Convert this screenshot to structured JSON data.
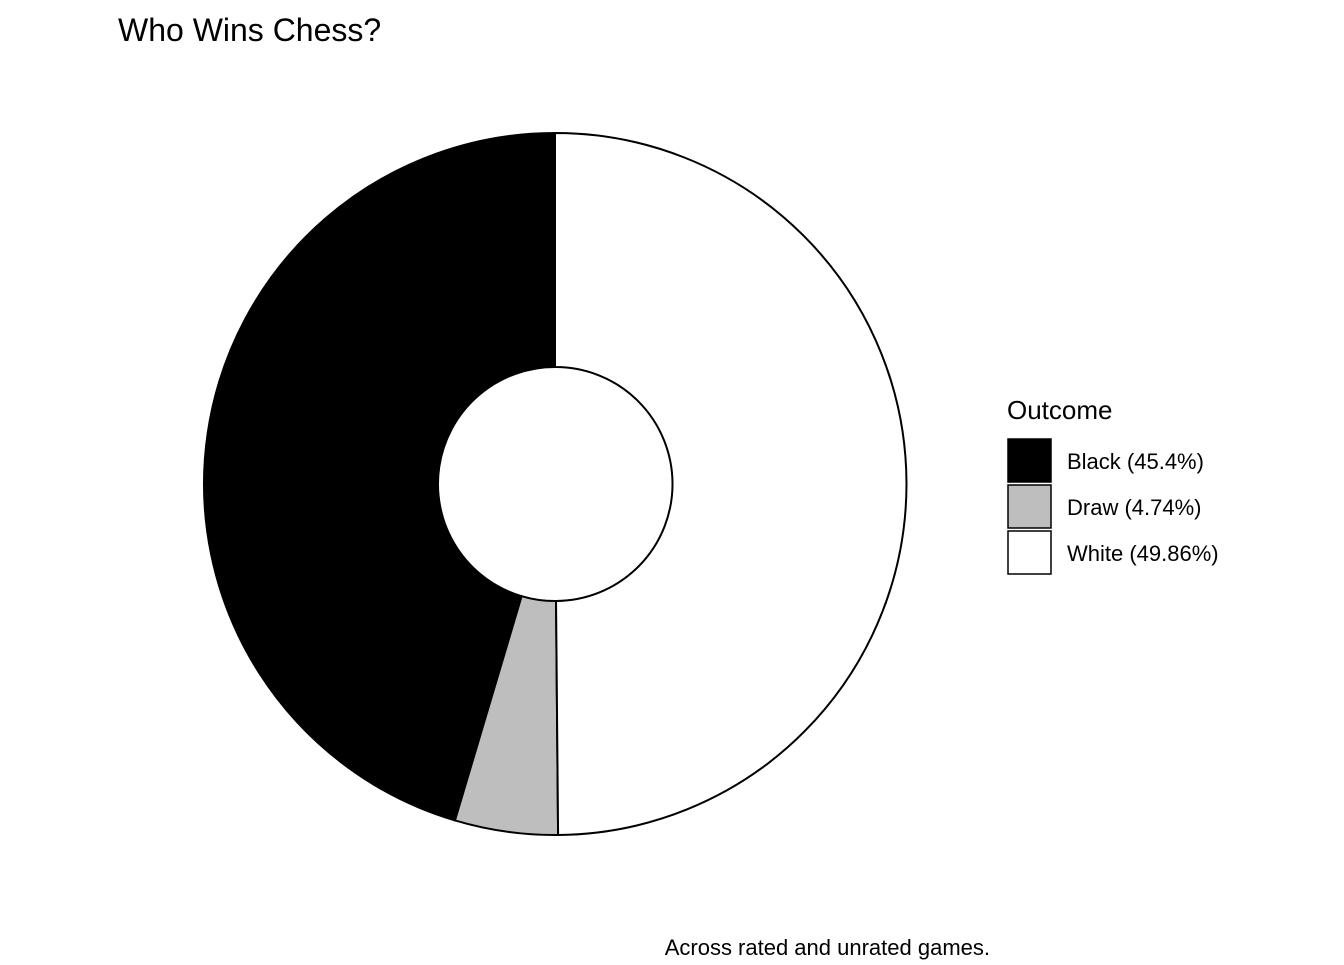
{
  "chart_data": {
    "type": "pie",
    "variant": "donut",
    "title": "Who Wins Chess?",
    "caption": "Across rated and unrated games.",
    "legend": {
      "title": "Outcome",
      "position": "right"
    },
    "slices": [
      {
        "category": "Black",
        "label": "Black (45.4%)",
        "value": 45.4,
        "color": "#000000"
      },
      {
        "category": "Draw",
        "label": "Draw (4.74%)",
        "value": 4.74,
        "color": "#bebebe"
      },
      {
        "category": "White",
        "label": "White (49.86%)",
        "value": 49.86,
        "color": "#ffffff"
      }
    ],
    "slice_order": "counter-clockwise from top"
  }
}
